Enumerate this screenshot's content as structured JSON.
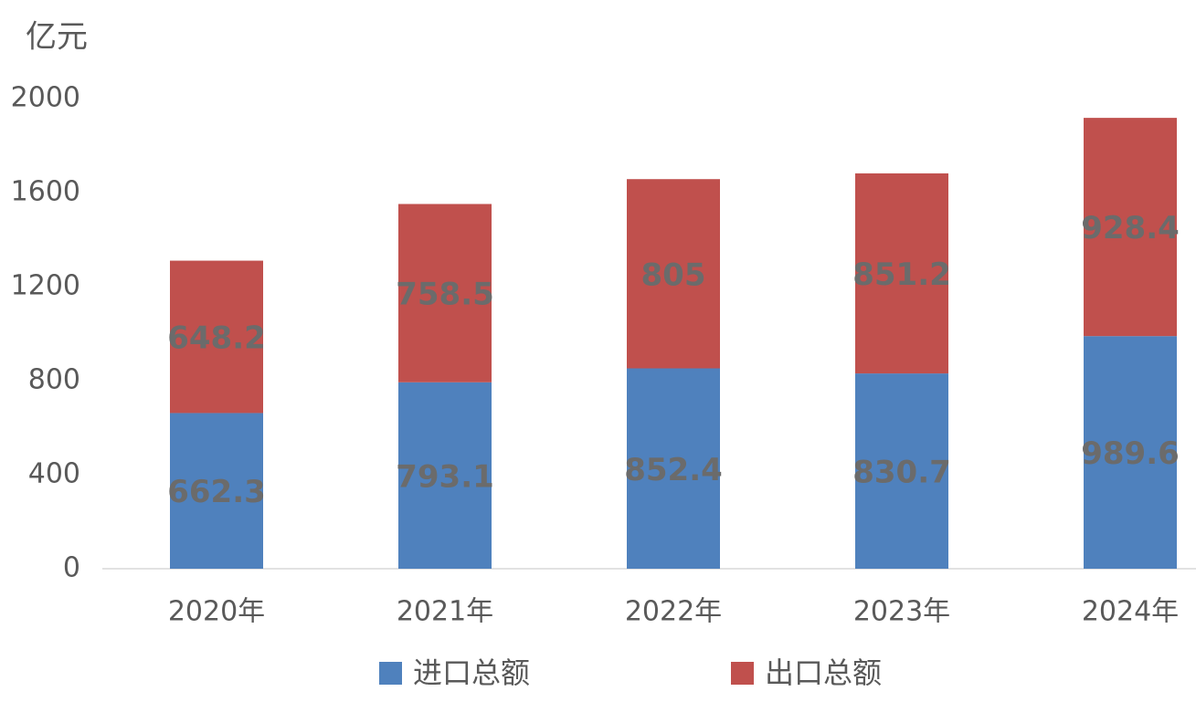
{
  "chart_data": {
    "type": "bar",
    "stacked": true,
    "y_label": "亿元",
    "categories": [
      "2020年",
      "2021年",
      "2022年",
      "2023年",
      "2024年"
    ],
    "series": [
      {
        "name": "进口总额",
        "color": "#4f81bd",
        "values": [
          662.3,
          793.1,
          852.4,
          830.7,
          989.6
        ]
      },
      {
        "name": "出口总额",
        "color": "#c0504d",
        "values": [
          648.2,
          758.5,
          805,
          851.2,
          928.4
        ]
      }
    ],
    "ylim": [
      0,
      2000
    ],
    "yticks": [
      0,
      400,
      800,
      1200,
      1600,
      2000
    ],
    "legend": "bottom"
  }
}
